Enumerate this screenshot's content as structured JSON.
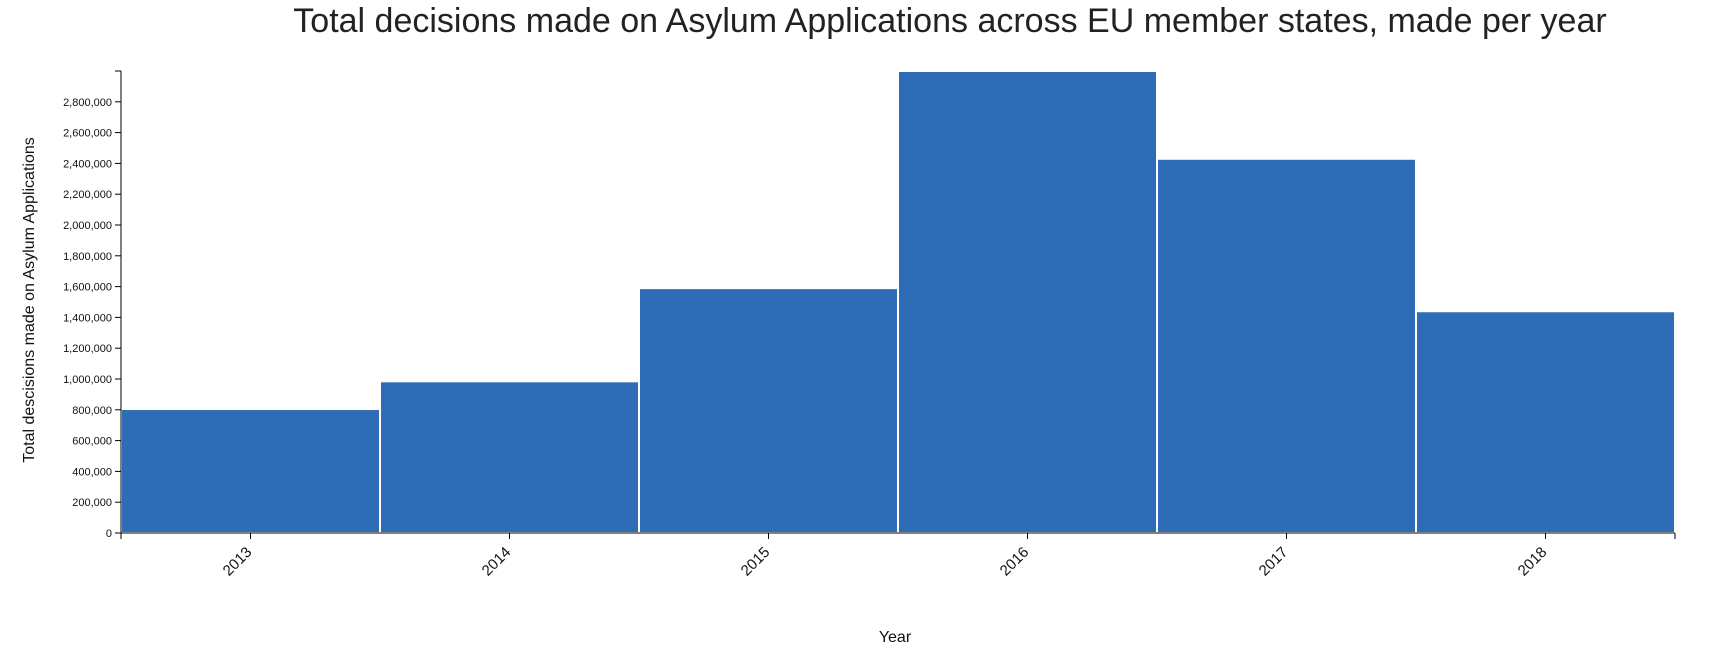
{
  "chart_data": {
    "type": "bar",
    "title": "Total decisions made on Asylum Applications across EU member states, made per year",
    "xlabel": "Year",
    "ylabel": "Total descisions made on Asylum Applications",
    "categories": [
      "2013",
      "2014",
      "2015",
      "2016",
      "2017",
      "2018"
    ],
    "values": [
      805000,
      985000,
      1590000,
      3000000,
      2430000,
      1440000
    ],
    "ylim": [
      0,
      3000000
    ],
    "yticks": [
      0,
      200000,
      400000,
      600000,
      800000,
      1000000,
      1200000,
      1400000,
      1600000,
      1800000,
      2000000,
      2200000,
      2400000,
      2600000,
      2800000
    ],
    "ytick_labels": [
      "0",
      "200,000",
      "400,000",
      "600,000",
      "800,000",
      "1,000,000",
      "1,200,000",
      "1,400,000",
      "1,600,000",
      "1,800,000",
      "2,000,000",
      "2,200,000",
      "2,400,000",
      "2,600,000",
      "2,800,000"
    ],
    "bar_color": "#2e6db5",
    "grid": false,
    "legend": "none"
  }
}
